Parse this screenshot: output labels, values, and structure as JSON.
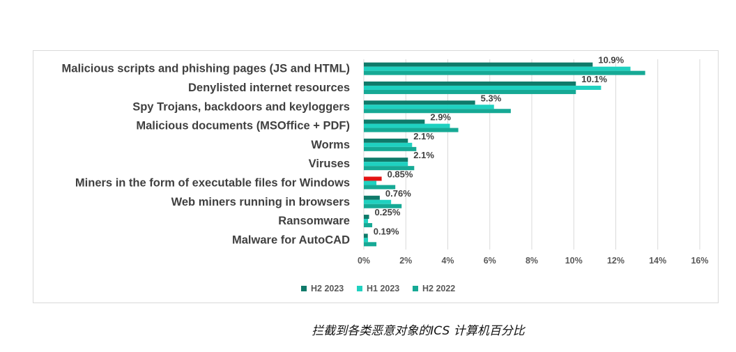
{
  "caption": "拦截到各类恶意对象的ICS 计算机百分比",
  "colors": {
    "H2 2023": "#0f7a6a",
    "H1 2023": "#1fd1c0",
    "H2 2022": "#16a995",
    "highlight": "#e31414",
    "grid": "#d9d9d9"
  },
  "chart_data": {
    "type": "bar",
    "orientation": "horizontal",
    "categories": [
      "Malicious scripts and phishing pages (JS and HTML)",
      "Denylisted internet resources",
      "Spy Trojans, backdoors and keyloggers",
      "Malicious documents (MSOffice + PDF)",
      "Worms",
      "Viruses",
      "Miners in the form of executable files for Windows",
      "Web miners running in browsers",
      "Ransomware",
      "Malware for AutoCAD"
    ],
    "series": [
      {
        "name": "H2 2023",
        "values": [
          10.9,
          10.1,
          5.3,
          2.9,
          2.1,
          2.1,
          0.85,
          0.76,
          0.25,
          0.19
        ]
      },
      {
        "name": "H1 2023",
        "values": [
          12.7,
          11.3,
          6.2,
          4.1,
          2.3,
          2.1,
          0.6,
          1.3,
          0.2,
          0.2
        ]
      },
      {
        "name": "H2 2022",
        "values": [
          13.4,
          10.1,
          7.0,
          4.5,
          2.5,
          2.4,
          1.5,
          1.8,
          0.4,
          0.6
        ]
      }
    ],
    "data_labels": [
      "10.9%",
      "10.1%",
      "5.3%",
      "2.9%",
      "2.1%",
      "2.1%",
      "0.85%",
      "0.76%",
      "0.25%",
      "0.19%"
    ],
    "highlight_category_index": 6,
    "xlim": [
      0,
      16
    ],
    "xticks": [
      "0%",
      "2%",
      "4%",
      "6%",
      "8%",
      "10%",
      "12%",
      "14%",
      "16%"
    ],
    "grid": "vertical",
    "legend": {
      "position": "bottom",
      "entries": [
        "H2 2023",
        "H1 2023",
        "H2 2022"
      ]
    }
  }
}
